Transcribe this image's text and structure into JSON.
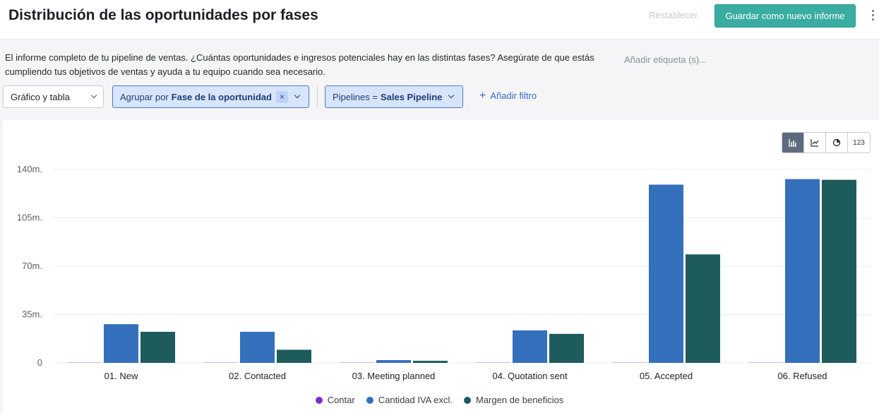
{
  "header": {
    "title": "Distribución de las oportunidades por fases",
    "reset_label": "Restablecer",
    "save_label": "Guardar como nuevo informe"
  },
  "description": "El informe completo de tu pipeline de ventas. ¿Cuántas oportunidades e ingresos potenciales hay en las distintas fases? Asegúrate de que estás cumpliendo tus objetivos de ventas y ayuda a tu equipo cuando sea necesario.",
  "tag_placeholder": "Añadir etiqueta (s)...",
  "controls": {
    "view_select": "Gráfico y tabla",
    "group_prefix": "Agrupar por",
    "group_value": "Fase de la oportunidad",
    "remove_icon": "×",
    "pipeline_prefix": "Pipelines =",
    "pipeline_value": "Sales Pipeline",
    "add_filter": "Añadir filtro"
  },
  "chart_toggles": [
    {
      "name": "bar-chart-icon",
      "active": true
    },
    {
      "name": "line-chart-icon",
      "active": false
    },
    {
      "name": "pie-chart-icon",
      "active": false
    },
    {
      "name": "number-icon",
      "label": "123",
      "active": false
    }
  ],
  "chart_data": {
    "type": "bar",
    "categories": [
      "01. New",
      "02. Contacted",
      "03. Meeting planned",
      "04. Quotation sent",
      "05. Accepted",
      "06. Refused"
    ],
    "series": [
      {
        "name": "Contar",
        "color": "#7a2fc9",
        "values": [
          0.3,
          0.1,
          0.1,
          0.1,
          0.3,
          0.1
        ]
      },
      {
        "name": "Cantidad IVA excl.",
        "color": "#3470bb",
        "values": [
          28,
          22.5,
          2,
          23.5,
          129,
          133
        ]
      },
      {
        "name": "Margen de beneficios",
        "color": "#1e5b5c",
        "values": [
          22.5,
          9.5,
          1.5,
          21,
          78.5,
          132.5
        ]
      }
    ],
    "yticks": [
      0,
      35,
      70,
      105,
      140
    ],
    "ytick_labels": [
      "0",
      "35m.",
      "70m.",
      "105m.",
      "140m."
    ],
    "ylim": [
      0,
      140
    ],
    "grid": true,
    "legend_position": "bottom"
  }
}
